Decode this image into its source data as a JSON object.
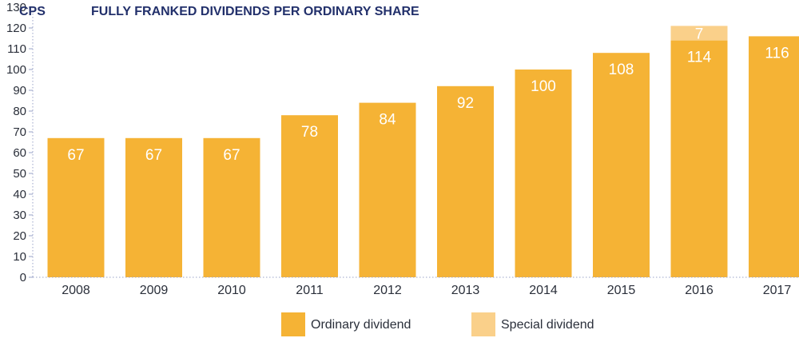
{
  "chart_data": {
    "type": "bar",
    "stacked": true,
    "title": "FULLY FRANKED DIVIDENDS PER ORDINARY SHARE",
    "ylabel": "CPS",
    "xlabel": "",
    "ylim": [
      0,
      130
    ],
    "yticks": [
      0,
      10,
      20,
      30,
      40,
      50,
      60,
      70,
      80,
      90,
      100,
      110,
      120,
      130
    ],
    "categories": [
      "2008",
      "2009",
      "2010",
      "2011",
      "2012",
      "2013",
      "2014",
      "2015",
      "2016",
      "2017"
    ],
    "series": [
      {
        "name": "Ordinary dividend",
        "color": "#F5B335",
        "values": [
          67,
          67,
          67,
          78,
          84,
          92,
          100,
          108,
          114,
          116
        ],
        "labels": [
          "67",
          "67",
          "67",
          "78",
          "84",
          "92",
          "100",
          "108",
          "114",
          "116"
        ]
      },
      {
        "name": "Special dividend",
        "color": "#FAD08A",
        "values": [
          0,
          0,
          0,
          0,
          0,
          0,
          0,
          0,
          7,
          0
        ],
        "labels": [
          "",
          "",
          "",
          "",
          "",
          "",
          "",
          "",
          "7",
          ""
        ]
      }
    ],
    "grid": false,
    "legend": "bottom"
  }
}
